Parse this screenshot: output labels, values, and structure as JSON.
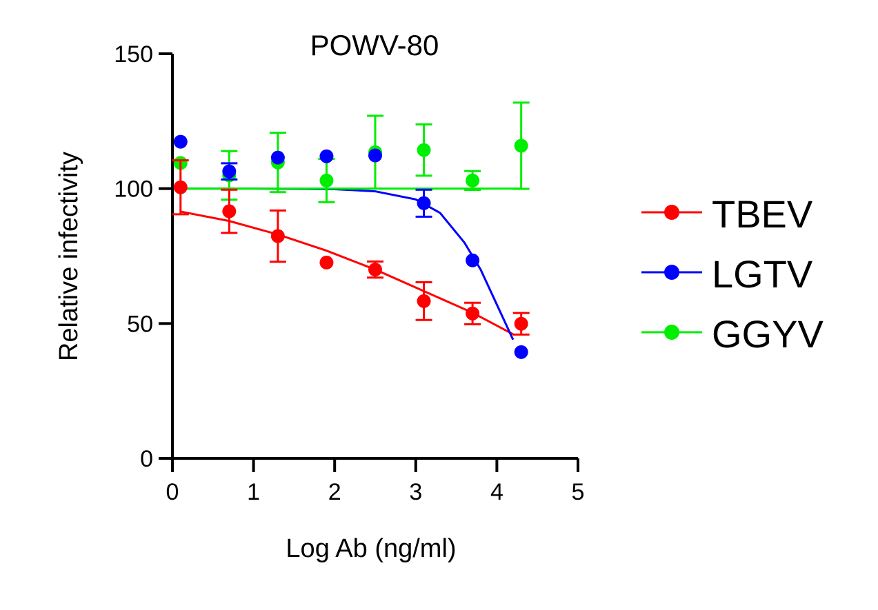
{
  "chart_data": {
    "type": "scatter",
    "title": "POWV-80",
    "xlabel": "Log Ab (ng/ml)",
    "ylabel": "Relative infectivity",
    "xlim": [
      0,
      5
    ],
    "ylim": [
      0,
      150
    ],
    "xticks": [
      "0",
      "1",
      "2",
      "3",
      "4",
      "5"
    ],
    "yticks": [
      "0",
      "50",
      "100",
      "150"
    ],
    "grid": false,
    "legend_position": "right",
    "series": [
      {
        "name": "TBEV",
        "color": "#ff0000",
        "x": [
          0.1,
          0.7,
          1.3,
          1.9,
          2.5,
          3.1,
          3.7,
          4.3
        ],
        "y": [
          100.5,
          91.6,
          82.4,
          72.6,
          70,
          58.3,
          53.7,
          49.9
        ],
        "err": [
          10,
          8,
          9.5,
          0,
          3,
          7,
          4,
          4
        ],
        "fit": [
          [
            0.1,
            91.5
          ],
          [
            0.7,
            88
          ],
          [
            1.3,
            83
          ],
          [
            1.9,
            77
          ],
          [
            2.5,
            70
          ],
          [
            3.1,
            62
          ],
          [
            3.7,
            54
          ],
          [
            4.2,
            46
          ]
        ]
      },
      {
        "name": "LGTV",
        "color": "#0000ff",
        "x": [
          0.1,
          0.7,
          1.3,
          1.9,
          2.5,
          3.1,
          3.7,
          4.3
        ],
        "y": [
          117.4,
          106.4,
          111.5,
          112,
          112.3,
          94.6,
          73.4,
          39.4
        ],
        "err": [
          0,
          3,
          0,
          0,
          0,
          5,
          0,
          0
        ],
        "fit": [
          [
            0.1,
            100
          ],
          [
            1,
            100
          ],
          [
            2,
            99.8
          ],
          [
            2.5,
            99
          ],
          [
            3,
            96
          ],
          [
            3.3,
            91
          ],
          [
            3.6,
            80
          ],
          [
            3.8,
            70
          ],
          [
            4.0,
            57
          ],
          [
            4.2,
            44
          ]
        ]
      },
      {
        "name": "GGYV",
        "color": "#00ee00",
        "x": [
          0.1,
          0.7,
          1.3,
          1.9,
          2.5,
          3.1,
          3.7,
          4.3
        ],
        "y": [
          109.5,
          104.9,
          109.7,
          103,
          113.5,
          114.3,
          103,
          115.9
        ],
        "err": [
          0,
          9,
          11,
          8,
          13.5,
          9.5,
          3.5,
          16
        ],
        "fit": [
          [
            0.1,
            100
          ],
          [
            4.3,
            100
          ]
        ]
      }
    ]
  }
}
